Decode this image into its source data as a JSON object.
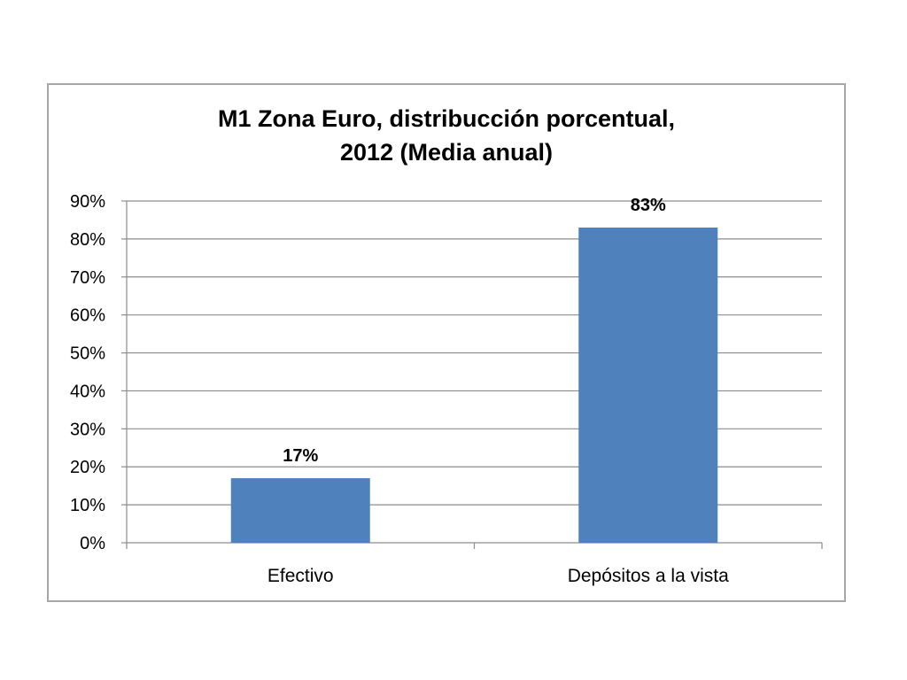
{
  "chart_data": {
    "type": "bar",
    "title_line1": "M1 Zona Euro, distribucción porcentual,",
    "title_line2": "2012 (Media anual)",
    "categories": [
      "Efectivo",
      "Depósitos a la vista"
    ],
    "values": [
      17,
      83
    ],
    "data_labels": [
      "17%",
      "83%"
    ],
    "ylim": [
      0,
      90
    ],
    "yticks": [
      0,
      10,
      20,
      30,
      40,
      50,
      60,
      70,
      80,
      90
    ],
    "ytick_labels": [
      "0%",
      "10%",
      "20%",
      "30%",
      "40%",
      "50%",
      "60%",
      "70%",
      "80%",
      "90%"
    ],
    "grid": true,
    "bar_color": "#4f81bd",
    "grid_color": "#8c8c8c",
    "xlabel": "",
    "ylabel": ""
  }
}
